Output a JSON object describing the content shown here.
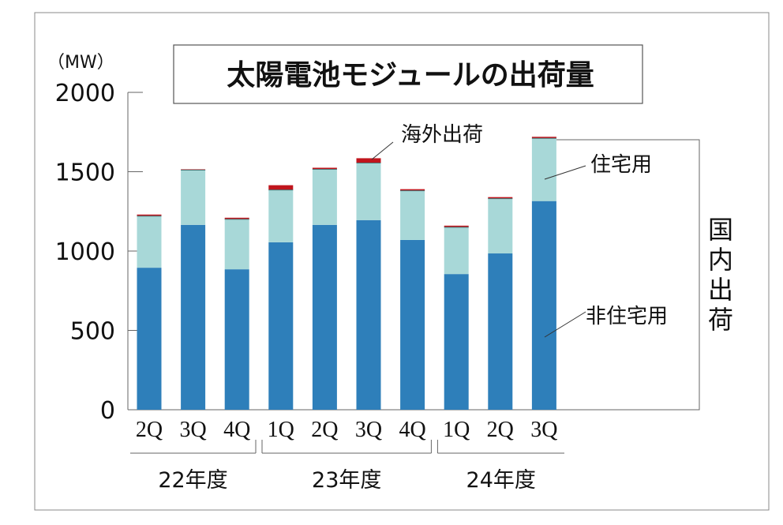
{
  "chart_data": {
    "type": "bar",
    "stacked": true,
    "title": "太陽電池モジュールの出荷量",
    "unit_label": "（MW）",
    "categories": [
      "2Q",
      "3Q",
      "4Q",
      "1Q",
      "2Q",
      "3Q",
      "4Q",
      "1Q",
      "2Q",
      "3Q"
    ],
    "groups": [
      {
        "label": "22年度",
        "count": 3
      },
      {
        "label": "23年度",
        "count": 4
      },
      {
        "label": "24年度",
        "count": 3
      }
    ],
    "ylim": [
      0,
      2000
    ],
    "yticks": [
      "0",
      "500",
      "1000",
      "1500",
      "2000"
    ],
    "series": [
      {
        "name": "非住宅用",
        "color": "#2e7fba",
        "values": [
          895,
          1165,
          885,
          1055,
          1165,
          1195,
          1070,
          855,
          985,
          1315
        ]
      },
      {
        "name": "住宅用",
        "color": "#a8d8d8",
        "values": [
          325,
          345,
          315,
          330,
          350,
          360,
          310,
          295,
          345,
          395
        ]
      },
      {
        "name": "海外出荷",
        "color": "#c0151d",
        "values": [
          10,
          5,
          10,
          30,
          10,
          30,
          10,
          10,
          10,
          10
        ]
      }
    ],
    "bracket_label": "国内出荷",
    "grid": false,
    "legend": "annotated on right"
  }
}
